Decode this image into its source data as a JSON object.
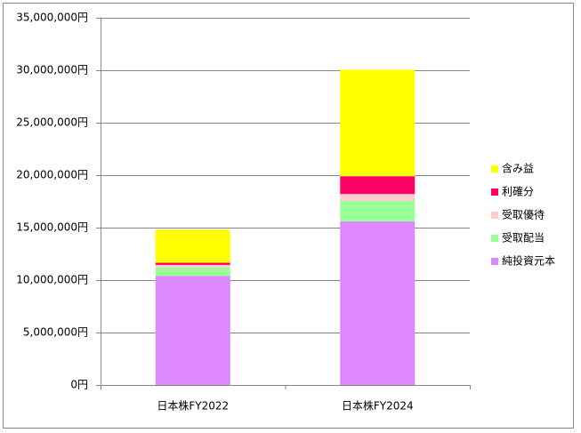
{
  "chart_data": {
    "type": "stacked_bar",
    "categories": [
      "日本株FY2022",
      "日本株FY2024"
    ],
    "series": [
      {
        "name": "純投資元本",
        "color": "#dd88ff",
        "values": [
          10400000,
          15600000
        ]
      },
      {
        "name": "受取配当",
        "color": "#99ff99",
        "values": [
          800000,
          1950000
        ]
      },
      {
        "name": "受取優待",
        "color": "#ffcccc",
        "values": [
          250000,
          650000
        ]
      },
      {
        "name": "利確分",
        "color": "#ff0066",
        "values": [
          200000,
          1700000
        ]
      },
      {
        "name": "含み益",
        "color": "#ffff00",
        "values": [
          3150000,
          10150000
        ]
      }
    ],
    "ylim": [
      0,
      35000000
    ],
    "yticks": [
      {
        "value": 0,
        "label": "0円"
      },
      {
        "value": 5000000,
        "label": "5,000,000円"
      },
      {
        "value": 10000000,
        "label": "10,000,000円"
      },
      {
        "value": 15000000,
        "label": "15,000,000円"
      },
      {
        "value": 20000000,
        "label": "20,000,000円"
      },
      {
        "value": 25000000,
        "label": "25,000,000円"
      },
      {
        "value": 30000000,
        "label": "30,000,000円"
      },
      {
        "value": 35000000,
        "label": "35,000,000円"
      }
    ],
    "grid": true,
    "legend": "right"
  }
}
